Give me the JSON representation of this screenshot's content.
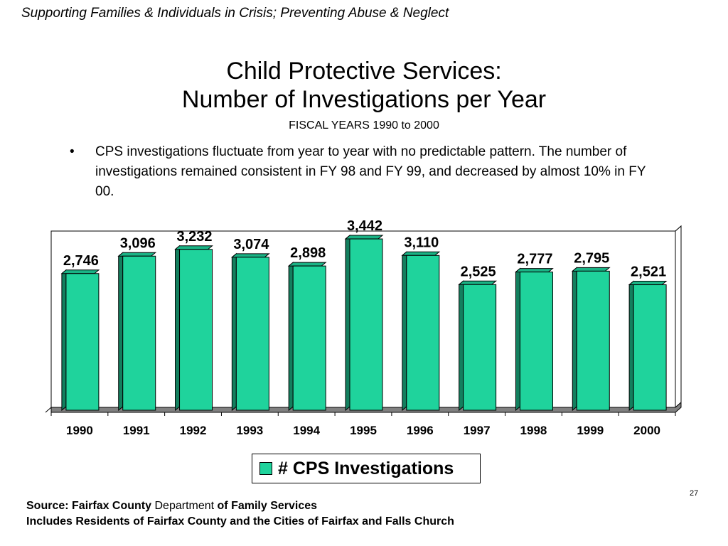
{
  "header": "Supporting Families & Individuals in Crisis; Preventing Abuse & Neglect",
  "title_line1": "Child Protective Services:",
  "title_line2": "Number of Investigations per Year",
  "subtitle": "FISCAL  YEARS 1990 to 2000",
  "bullet_symbol": "•",
  "bullet_text": "CPS investigations fluctuate from year to year with no predictable pattern.  The number of investigations remained consistent in FY 98 and FY 99, and decreased by almost 10% in FY 00.",
  "legend_label": "# CPS Investigations",
  "source_prefix": "Source:  Fairfax County",
  "source_dept": "Department",
  "source_suffix": "of Family Services",
  "source_line2": "Includes Residents of Fairfax County and the Cities of Fairfax and Falls Church",
  "page_number": "27",
  "chart_data": {
    "type": "bar",
    "categories": [
      "1990",
      "1991",
      "1992",
      "1993",
      "1994",
      "1995",
      "1996",
      "1997",
      "1998",
      "1999",
      "2000"
    ],
    "values": [
      2746,
      3096,
      3232,
      3074,
      2898,
      3442,
      3110,
      2525,
      2777,
      2795,
      2521
    ],
    "value_labels": [
      "2,746",
      "3,096",
      "3,232",
      "3,074",
      "2,898",
      "3,442",
      "3,110",
      "2,525",
      "2,777",
      "2,795",
      "2,521"
    ],
    "series": [
      {
        "name": "# CPS Investigations"
      }
    ],
    "bar_color": "#1fd39c",
    "floor_color": "#808080",
    "ylim": [
      0,
      3600
    ],
    "legend_position": "bottom",
    "grid": false
  }
}
